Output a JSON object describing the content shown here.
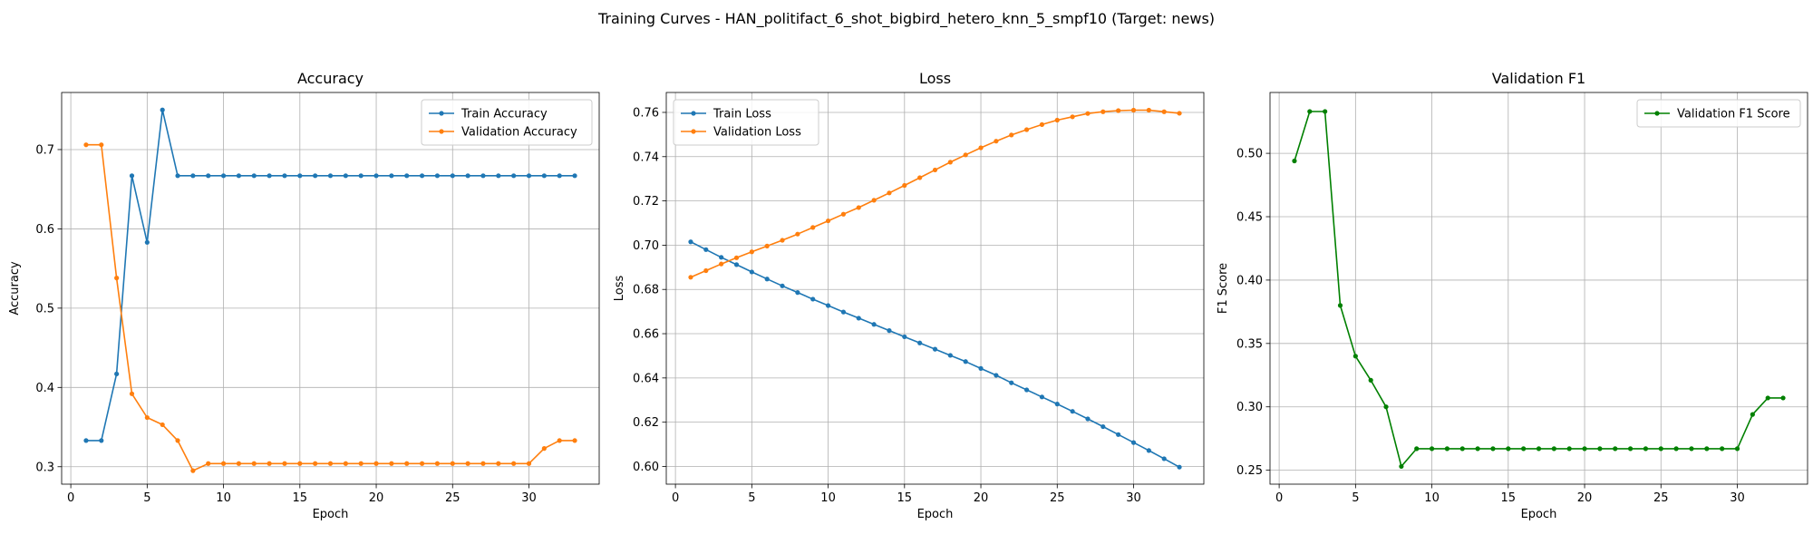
{
  "figure": {
    "suptitle": "Training Curves - HAN_politifact_6_shot_bigbird_hetero_knn_5_smpf10 (Target: news)"
  },
  "colors": {
    "blue": "#1f77b4",
    "orange": "#ff7f0e",
    "green": "#008000",
    "grid": "#b0b0b0"
  },
  "chart_data": [
    {
      "type": "line",
      "title": "Accuracy",
      "xlabel": "Epoch",
      "ylabel": "Accuracy",
      "xlim": [
        -0.6,
        34.6
      ],
      "ylim": [
        0.278,
        0.772
      ],
      "xticks": [
        0,
        5,
        10,
        15,
        20,
        25,
        30
      ],
      "yticks": [
        0.3,
        0.4,
        0.5,
        0.6,
        0.7
      ],
      "ytick_labels": [
        "0.3",
        "0.4",
        "0.5",
        "0.6",
        "0.7"
      ],
      "grid": true,
      "legend": "upper right",
      "x": [
        1,
        2,
        3,
        4,
        5,
        6,
        7,
        8,
        9,
        10,
        11,
        12,
        13,
        14,
        15,
        16,
        17,
        18,
        19,
        20,
        21,
        22,
        23,
        24,
        25,
        26,
        27,
        28,
        29,
        30,
        31,
        32,
        33
      ],
      "series": [
        {
          "name": "Train Accuracy",
          "color": "#1f77b4",
          "values": [
            0.333,
            0.333,
            0.417,
            0.667,
            0.583,
            0.75,
            0.667,
            0.667,
            0.667,
            0.667,
            0.667,
            0.667,
            0.667,
            0.667,
            0.667,
            0.667,
            0.667,
            0.667,
            0.667,
            0.667,
            0.667,
            0.667,
            0.667,
            0.667,
            0.667,
            0.667,
            0.667,
            0.667,
            0.667,
            0.667,
            0.667,
            0.667,
            0.667
          ]
        },
        {
          "name": "Validation Accuracy",
          "color": "#ff7f0e",
          "values": [
            0.706,
            0.706,
            0.538,
            0.392,
            0.362,
            0.353,
            0.333,
            0.295,
            0.304,
            0.304,
            0.304,
            0.304,
            0.304,
            0.304,
            0.304,
            0.304,
            0.304,
            0.304,
            0.304,
            0.304,
            0.304,
            0.304,
            0.304,
            0.304,
            0.304,
            0.304,
            0.304,
            0.304,
            0.304,
            0.304,
            0.323,
            0.333,
            0.333
          ]
        }
      ]
    },
    {
      "type": "line",
      "title": "Loss",
      "xlabel": "Epoch",
      "ylabel": "Loss",
      "xlim": [
        -0.6,
        34.6
      ],
      "ylim": [
        0.592,
        0.769
      ],
      "xticks": [
        0,
        5,
        10,
        15,
        20,
        25,
        30
      ],
      "yticks": [
        0.6,
        0.62,
        0.64,
        0.66,
        0.68,
        0.7,
        0.72,
        0.74,
        0.76
      ],
      "ytick_labels": [
        "0.60",
        "0.62",
        "0.64",
        "0.66",
        "0.68",
        "0.70",
        "0.72",
        "0.74",
        "0.76"
      ],
      "grid": true,
      "legend": "upper left",
      "x": [
        1,
        2,
        3,
        4,
        5,
        6,
        7,
        8,
        9,
        10,
        11,
        12,
        13,
        14,
        15,
        16,
        17,
        18,
        19,
        20,
        21,
        22,
        23,
        24,
        25,
        26,
        27,
        28,
        29,
        30,
        31,
        32,
        33
      ],
      "series": [
        {
          "name": "Train Loss",
          "color": "#1f77b4",
          "values": [
            0.7015,
            0.698,
            0.6945,
            0.6912,
            0.6879,
            0.6847,
            0.6816,
            0.6786,
            0.6756,
            0.6727,
            0.6698,
            0.667,
            0.6642,
            0.6614,
            0.6586,
            0.6558,
            0.653,
            0.6502,
            0.6474,
            0.6443,
            0.6412,
            0.6378,
            0.6346,
            0.6314,
            0.6282,
            0.6249,
            0.6215,
            0.618,
            0.6144,
            0.6108,
            0.6072,
            0.6035,
            0.5997
          ]
        },
        {
          "name": "Validation Loss",
          "color": "#ff7f0e",
          "values": [
            0.6855,
            0.6885,
            0.6915,
            0.6943,
            0.697,
            0.6996,
            0.7022,
            0.705,
            0.708,
            0.711,
            0.714,
            0.717,
            0.7203,
            0.7236,
            0.727,
            0.7305,
            0.734,
            0.7375,
            0.7408,
            0.744,
            0.747,
            0.7498,
            0.7522,
            0.7545,
            0.7565,
            0.758,
            0.7595,
            0.7603,
            0.7608,
            0.761,
            0.761,
            0.7603,
            0.7596
          ]
        }
      ]
    },
    {
      "type": "line",
      "title": "Validation F1",
      "xlabel": "Epoch",
      "ylabel": "F1 Score",
      "xlim": [
        -0.6,
        34.6
      ],
      "ylim": [
        0.239,
        0.548
      ],
      "xticks": [
        0,
        5,
        10,
        15,
        20,
        25,
        30
      ],
      "yticks": [
        0.25,
        0.3,
        0.35,
        0.4,
        0.45,
        0.5
      ],
      "ytick_labels": [
        "0.25",
        "0.30",
        "0.35",
        "0.40",
        "0.45",
        "0.50"
      ],
      "grid": true,
      "legend": "upper right",
      "x": [
        1,
        2,
        3,
        4,
        5,
        6,
        7,
        8,
        9,
        10,
        11,
        12,
        13,
        14,
        15,
        16,
        17,
        18,
        19,
        20,
        21,
        22,
        23,
        24,
        25,
        26,
        27,
        28,
        29,
        30,
        31,
        32,
        33
      ],
      "series": [
        {
          "name": "Validation F1 Score",
          "color": "#008000",
          "values": [
            0.494,
            0.533,
            0.533,
            0.38,
            0.34,
            0.321,
            0.3,
            0.253,
            0.267,
            0.267,
            0.267,
            0.267,
            0.267,
            0.267,
            0.267,
            0.267,
            0.267,
            0.267,
            0.267,
            0.267,
            0.267,
            0.267,
            0.267,
            0.267,
            0.267,
            0.267,
            0.267,
            0.267,
            0.267,
            0.267,
            0.294,
            0.307,
            0.307
          ]
        }
      ]
    }
  ]
}
